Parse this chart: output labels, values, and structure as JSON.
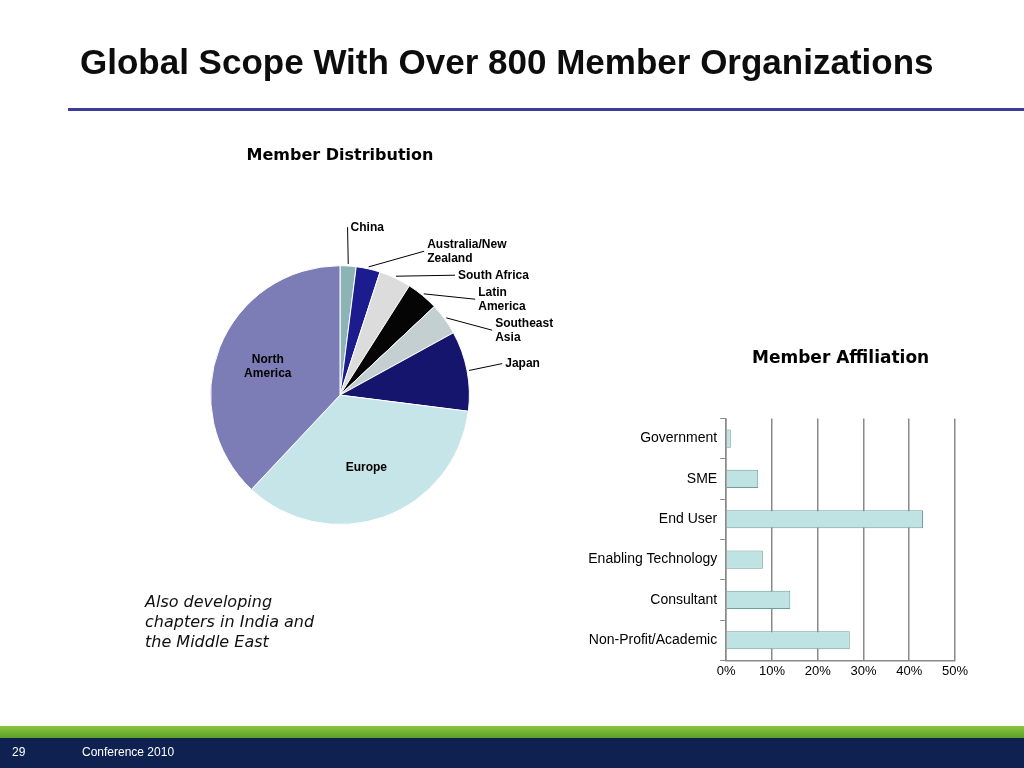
{
  "chart_data": [
    {
      "type": "pie",
      "title": "Member Distribution",
      "categories": [
        "China",
        "Australia/New Zealand",
        "South Africa",
        "Latin America",
        "Southeast Asia",
        "Japan",
        "Europe",
        "North America"
      ],
      "values": [
        2,
        3,
        4,
        4,
        4,
        10,
        35,
        38
      ],
      "colors": [
        "#8cb4b4",
        "#1c1c8f",
        "#dcdcdc",
        "#050505",
        "#c3cfd0",
        "#15156e",
        "#c6e5e8",
        "#7c7cb6"
      ],
      "annotations": [
        "Global Scope With Over 800 Member Organizations",
        "Also developing chapters in India and the Middle East",
        "29",
        "Conference 2010"
      ]
    },
    {
      "type": "bar",
      "title": "Member Affiliation",
      "orientation": "horizontal",
      "categories": [
        "Government",
        "SME",
        "End User",
        "Enabling Technology",
        "Consultant",
        "Non-Profit/Academic"
      ],
      "values": [
        1,
        7,
        43,
        8,
        14,
        27
      ],
      "color": "#bfe3e3",
      "xlim": [
        0,
        50
      ],
      "xticks": [
        {
          "value": 0,
          "label": "0%"
        },
        {
          "value": 10,
          "label": "10%"
        },
        {
          "value": 20,
          "label": "20%"
        },
        {
          "value": 30,
          "label": "30%"
        },
        {
          "value": 40,
          "label": "40%"
        },
        {
          "value": 50,
          "label": "50%"
        }
      ],
      "grid": "x"
    }
  ]
}
